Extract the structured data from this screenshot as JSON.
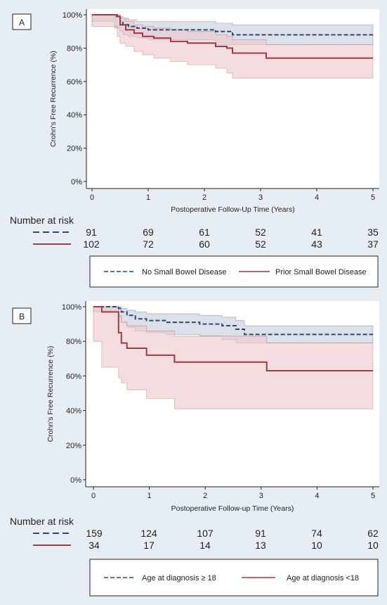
{
  "panels": [
    {
      "label": "A",
      "risk_title": "Number at risk",
      "legend": [
        "No Small Bowel Disease",
        "Prior Small Bowel Disease"
      ],
      "risk": [
        [
          91,
          69,
          61,
          52,
          41,
          35
        ],
        [
          102,
          72,
          60,
          52,
          43,
          37
        ]
      ]
    },
    {
      "label": "B",
      "risk_title": "Number at risk",
      "legend": [
        "Age at diagnosis ≥ 18",
        "Age at diagnosis <18"
      ],
      "risk": [
        [
          159,
          124,
          107,
          91,
          74,
          62
        ],
        [
          34,
          17,
          14,
          13,
          10,
          10
        ]
      ]
    }
  ],
  "colors": {
    "series1": "#2c4a73",
    "band1": "#c4ccdb",
    "series2": "#9e3a44",
    "band2": "#edc7c9",
    "plot_bg": "#ffffff",
    "outer_bg": "#e7eef3"
  },
  "chart_data": [
    {
      "type": "line",
      "title": "",
      "xlabel": "Postoperative Follow-Up Time (Years)",
      "ylabel": "Crohn's Free Recurrence (%)",
      "xlim": [
        0,
        5
      ],
      "ylim": [
        0,
        100
      ],
      "xticks": [
        "0",
        "1",
        "2",
        "3",
        "4",
        "5"
      ],
      "yticks": [
        "0%",
        "20%",
        "40%",
        "60%",
        "80%",
        "100%"
      ],
      "grid": false,
      "legend_position": "bottom",
      "series": [
        {
          "name": "No Small Bowel Disease",
          "style": "dashed",
          "x": [
            0,
            0.4,
            0.5,
            0.55,
            0.65,
            0.8,
            1.0,
            2.2,
            2.5,
            5
          ],
          "y": [
            100,
            99,
            96,
            94,
            93,
            92,
            91,
            90,
            88,
            88
          ],
          "upper": [
            100,
            100,
            99,
            98,
            97,
            96,
            96,
            95,
            94,
            94
          ],
          "lower": [
            100,
            96,
            92,
            90,
            88,
            87,
            86,
            85,
            82,
            82
          ]
        },
        {
          "name": "Prior Small Bowel Disease",
          "style": "solid",
          "x": [
            0,
            0.1,
            0.45,
            0.5,
            0.6,
            0.75,
            0.9,
            1.1,
            1.4,
            1.7,
            2.2,
            2.4,
            2.5,
            3.1,
            5
          ],
          "y": [
            100,
            100,
            99,
            94,
            91,
            89,
            87,
            86,
            84,
            83,
            81,
            80,
            77,
            74,
            74
          ],
          "upper": [
            100,
            100,
            100,
            98,
            96,
            94,
            93,
            92,
            91,
            90,
            88,
            87,
            85,
            82,
            82
          ],
          "lower": [
            100,
            93,
            93,
            87,
            83,
            81,
            78,
            76,
            74,
            72,
            70,
            68,
            65,
            62,
            62
          ]
        }
      ]
    },
    {
      "type": "line",
      "title": "",
      "xlabel": "Postoperative Follow-up Time (Years)",
      "ylabel": "Crohn's Free Recurrence (%)",
      "xlim": [
        0,
        5
      ],
      "ylim": [
        0,
        100
      ],
      "xticks": [
        "0",
        "1",
        "2",
        "3",
        "4",
        "5"
      ],
      "yticks": [
        "0%",
        "20%",
        "40%",
        "60%",
        "80%",
        "100%"
      ],
      "grid": false,
      "legend_position": "bottom",
      "series": [
        {
          "name": "Age at diagnosis ≥ 18",
          "style": "dashed",
          "x": [
            0,
            0.45,
            0.5,
            0.6,
            0.75,
            0.95,
            1.3,
            1.9,
            2.3,
            2.55,
            2.7,
            5
          ],
          "y": [
            100,
            99,
            97,
            95,
            93,
            92,
            91,
            90,
            89,
            87,
            84,
            84
          ],
          "upper": [
            100,
            100,
            99,
            98,
            97,
            96,
            96,
            95,
            94,
            92,
            89,
            89
          ],
          "lower": [
            100,
            97,
            94,
            91,
            88,
            86,
            85,
            84,
            83,
            81,
            79,
            79
          ]
        },
        {
          "name": "Age at diagnosis <18",
          "style": "solid",
          "x": [
            0,
            0.15,
            0.45,
            0.5,
            0.6,
            0.95,
            1.45,
            3.1,
            5
          ],
          "y": [
            100,
            97,
            85,
            79,
            76,
            72,
            68,
            63,
            63
          ],
          "upper": [
            100,
            100,
            95,
            91,
            89,
            86,
            83,
            79,
            79
          ],
          "lower": [
            100,
            80,
            65,
            59,
            56,
            52,
            47,
            41,
            41
          ]
        }
      ]
    }
  ]
}
